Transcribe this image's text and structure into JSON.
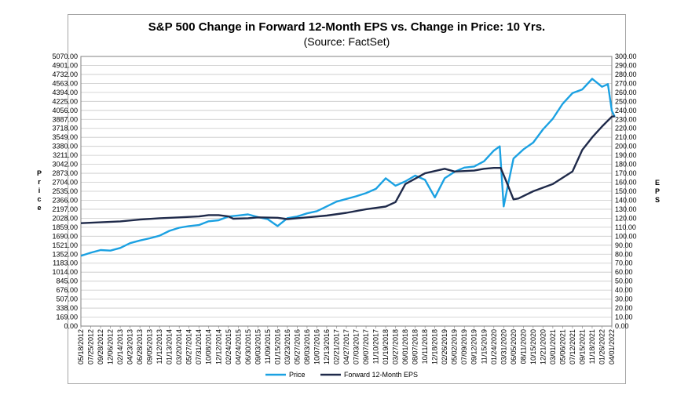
{
  "chart_data": {
    "type": "line",
    "title": "S&P 500 Change in Forward 12-Month EPS vs. Change in Price: 10 Yrs.",
    "subtitle": "(Source: FactSet)",
    "ylabel_left": "Price",
    "ylabel_right": "EPS",
    "ylim_left": [
      0,
      5070
    ],
    "ylim_right": [
      0,
      300
    ],
    "left_ticks": [
      "0.00",
      "169.00",
      "338.00",
      "507.00",
      "676.00",
      "845.00",
      "1014.00",
      "1183.00",
      "1352.00",
      "1521.00",
      "1690.00",
      "1859.00",
      "2028.00",
      "2197.00",
      "2366.00",
      "2535.00",
      "2704.00",
      "2873.00",
      "3042.00",
      "3211.00",
      "3380.00",
      "3549.00",
      "3718.00",
      "3887.00",
      "4056.00",
      "4225.00",
      "4394.00",
      "4563.00",
      "4732.00",
      "4901.00",
      "5070.00"
    ],
    "right_ticks": [
      "0.00",
      "10.00",
      "20.00",
      "30.00",
      "40.00",
      "50.00",
      "60.00",
      "70.00",
      "80.00",
      "90.00",
      "100.00",
      "110.00",
      "120.00",
      "130.00",
      "140.00",
      "150.00",
      "160.00",
      "170.00",
      "180.00",
      "190.00",
      "200.00",
      "210.00",
      "220.00",
      "230.00",
      "240.00",
      "250.00",
      "260.00",
      "270.00",
      "280.00",
      "290.00",
      "300.00"
    ],
    "x_ticks": [
      "05/18/2012",
      "07/25/2012",
      "09/28/2012",
      "12/06/2012",
      "02/14/2013",
      "04/23/2013",
      "06/28/2013",
      "09/05/2013",
      "11/12/2013",
      "01/13/2014",
      "03/20/2014",
      "05/27/2014",
      "07/31/2014",
      "10/08/2014",
      "12/12/2014",
      "02/24/2015",
      "04/24/2015",
      "06/30/2015",
      "09/03/2015",
      "11/09/2015",
      "01/15/2016",
      "03/23/2016",
      "05/27/2016",
      "08/03/2016",
      "10/07/2016",
      "12/13/2016",
      "02/21/2017",
      "04/27/2017",
      "07/03/2017",
      "09/07/2017",
      "11/10/2017",
      "01/19/2018",
      "03/27/2018",
      "06/01/2018",
      "08/07/2018",
      "10/11/2018",
      "12/18/2018",
      "02/26/2019",
      "05/02/2019",
      "07/09/2019",
      "09/12/2019",
      "11/15/2019",
      "01/24/2020",
      "03/31/2020",
      "06/05/2020",
      "08/11/2020",
      "10/15/2020",
      "12/21/2020",
      "03/01/2021",
      "05/06/2021",
      "07/12/2021",
      "09/15/2021",
      "11/18/2021",
      "01/26/2022",
      "04/01/2022"
    ],
    "series": [
      {
        "name": "Price",
        "axis": "left",
        "color": "#1ba1e2",
        "points": [
          [
            0,
            1320
          ],
          [
            1,
            1380
          ],
          [
            2,
            1430
          ],
          [
            3,
            1420
          ],
          [
            4,
            1470
          ],
          [
            5,
            1560
          ],
          [
            6,
            1610
          ],
          [
            7,
            1650
          ],
          [
            8,
            1700
          ],
          [
            9,
            1790
          ],
          [
            10,
            1850
          ],
          [
            11,
            1880
          ],
          [
            12,
            1900
          ],
          [
            13,
            1970
          ],
          [
            14,
            1990
          ],
          [
            15,
            2060
          ],
          [
            16,
            2080
          ],
          [
            17,
            2100
          ],
          [
            18,
            2050
          ],
          [
            19,
            2010
          ],
          [
            20,
            1880
          ],
          [
            21,
            2030
          ],
          [
            22,
            2060
          ],
          [
            23,
            2120
          ],
          [
            24,
            2160
          ],
          [
            25,
            2250
          ],
          [
            26,
            2340
          ],
          [
            27,
            2390
          ],
          [
            28,
            2440
          ],
          [
            29,
            2500
          ],
          [
            30,
            2580
          ],
          [
            31,
            2780
          ],
          [
            32,
            2640
          ],
          [
            33,
            2720
          ],
          [
            34,
            2830
          ],
          [
            35,
            2750
          ],
          [
            36,
            2420
          ],
          [
            37,
            2780
          ],
          [
            38,
            2900
          ],
          [
            39,
            2980
          ],
          [
            40,
            3000
          ],
          [
            41,
            3100
          ],
          [
            42,
            3300
          ],
          [
            42.6,
            3380
          ],
          [
            43,
            2250
          ],
          [
            43.4,
            2620
          ],
          [
            44,
            3150
          ],
          [
            45,
            3320
          ],
          [
            46,
            3450
          ],
          [
            47,
            3700
          ],
          [
            48,
            3900
          ],
          [
            49,
            4180
          ],
          [
            50,
            4380
          ],
          [
            51,
            4450
          ],
          [
            52,
            4650
          ],
          [
            53,
            4500
          ],
          [
            53.6,
            4550
          ],
          [
            54,
            4050
          ],
          [
            54.3,
            3930
          ]
        ]
      },
      {
        "name": "Forward 12-Month EPS",
        "axis": "right",
        "color": "#1f2a4a",
        "points": [
          [
            0,
            114.5
          ],
          [
            2,
            115.5
          ],
          [
            4,
            116.5
          ],
          [
            6,
            118.5
          ],
          [
            8,
            120
          ],
          [
            10,
            121
          ],
          [
            12,
            122
          ],
          [
            13,
            123.5
          ],
          [
            14,
            123.5
          ],
          [
            15,
            122
          ],
          [
            15.5,
            119.5
          ],
          [
            17,
            120
          ],
          [
            18,
            121
          ],
          [
            20,
            120.5
          ],
          [
            21,
            119
          ],
          [
            23,
            121
          ],
          [
            25,
            123
          ],
          [
            27,
            126
          ],
          [
            29,
            130
          ],
          [
            31,
            133
          ],
          [
            32,
            138
          ],
          [
            33,
            158
          ],
          [
            35,
            170
          ],
          [
            37,
            175
          ],
          [
            38,
            172
          ],
          [
            40,
            173
          ],
          [
            41,
            175
          ],
          [
            42,
            176
          ],
          [
            42.7,
            176
          ],
          [
            43.3,
            160
          ],
          [
            44,
            141
          ],
          [
            44.5,
            142
          ],
          [
            46,
            150
          ],
          [
            48,
            158
          ],
          [
            50,
            172
          ],
          [
            51,
            196
          ],
          [
            52,
            210
          ],
          [
            53,
            222
          ],
          [
            54,
            233
          ],
          [
            54.3,
            233.5
          ]
        ]
      }
    ],
    "legend_position": "bottom",
    "grid": true
  }
}
